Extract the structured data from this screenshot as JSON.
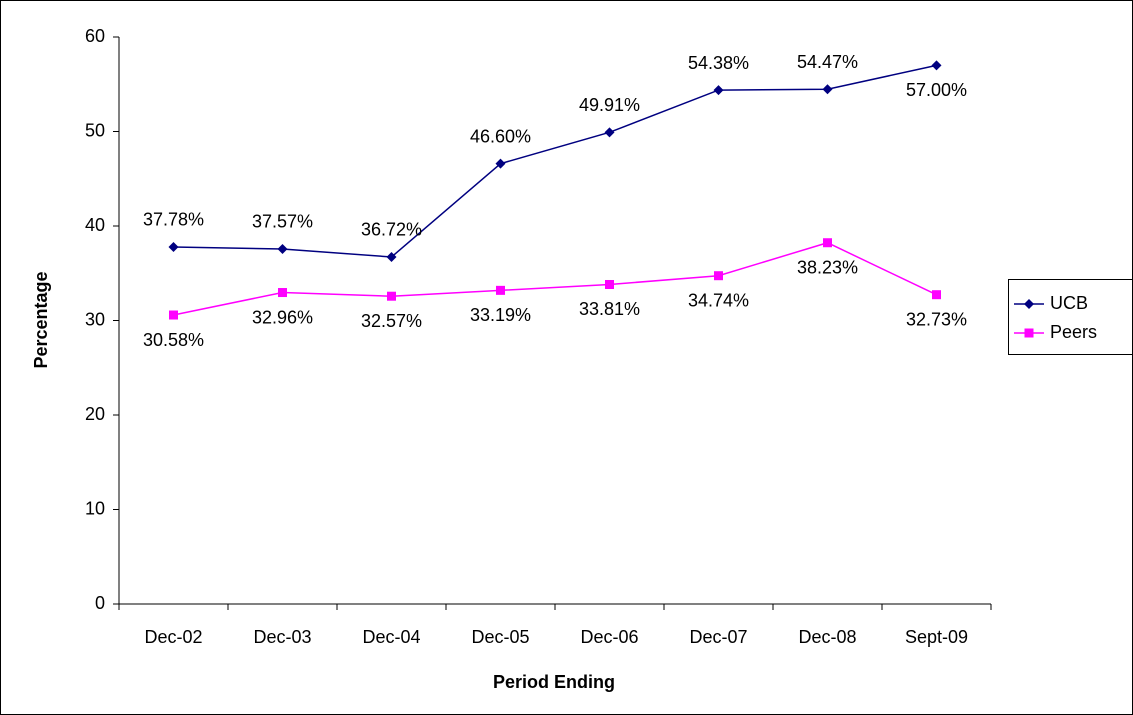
{
  "chart_data": {
    "type": "line",
    "x_label": "Period Ending",
    "y_label": "Percentage",
    "categories": [
      "Dec-02",
      "Dec-03",
      "Dec-04",
      "Dec-05",
      "Dec-06",
      "Dec-07",
      "Dec-08",
      "Sept-09"
    ],
    "series": [
      {
        "name": "UCB",
        "color": "#000080",
        "marker": "diamond",
        "values": [
          37.78,
          37.57,
          36.72,
          46.6,
          49.91,
          54.38,
          54.47,
          57.0
        ],
        "value_labels": [
          "37.78%",
          "37.57%",
          "36.72%",
          "46.60%",
          "49.91%",
          "54.38%",
          "54.47%",
          "57.00%"
        ]
      },
      {
        "name": "Peers",
        "color": "#ff00ff",
        "marker": "square",
        "values": [
          30.58,
          32.96,
          32.57,
          33.19,
          33.81,
          34.74,
          38.23,
          32.73
        ],
        "value_labels": [
          "30.58%",
          "32.96%",
          "32.57%",
          "33.19%",
          "33.81%",
          "34.74%",
          "38.23%",
          "32.73%"
        ]
      }
    ],
    "ylim": [
      0,
      60
    ],
    "yticks": [
      0,
      10,
      20,
      30,
      40,
      50,
      60
    ],
    "grid": false,
    "legend": "right"
  }
}
